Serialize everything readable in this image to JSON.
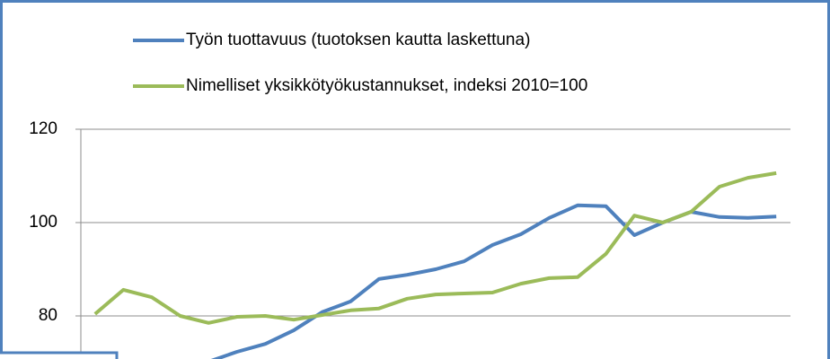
{
  "chart_data": {
    "type": "line",
    "categories": [
      null,
      null,
      null,
      null,
      null,
      null,
      null,
      null,
      null,
      null,
      null,
      null,
      null,
      null,
      null,
      null,
      null,
      null,
      null,
      null,
      null,
      null,
      null,
      null,
      null
    ],
    "series": [
      {
        "name": "Työn tuottavuus (tuotoksen kautta laskettuna)",
        "color": "#4f81bd",
        "values": [
          null,
          null,
          null,
          null,
          70.2,
          72.3,
          74,
          76.9,
          80.8,
          83.1,
          87.9,
          88.8,
          90,
          91.7,
          95.2,
          97.5,
          101,
          103.7,
          103.5,
          97.3,
          100,
          102.3,
          101.2,
          101,
          101.3
        ]
      },
      {
        "name": "Nimelliset yksikkötyökustannukset, indeksi 2010=100",
        "color": "#9bbb59",
        "values": [
          80.4,
          85.6,
          84,
          80,
          78.5,
          79.8,
          80,
          79.2,
          80.2,
          81.2,
          81.6,
          83.7,
          84.6,
          84.8,
          85,
          86.9,
          88.1,
          88.3,
          93.3,
          101.5,
          100,
          102.3,
          107.7,
          109.6,
          110.6
        ]
      }
    ],
    "ylim": [
      71,
      120
    ],
    "yticks": [
      80,
      100,
      120
    ],
    "grid": true
  }
}
